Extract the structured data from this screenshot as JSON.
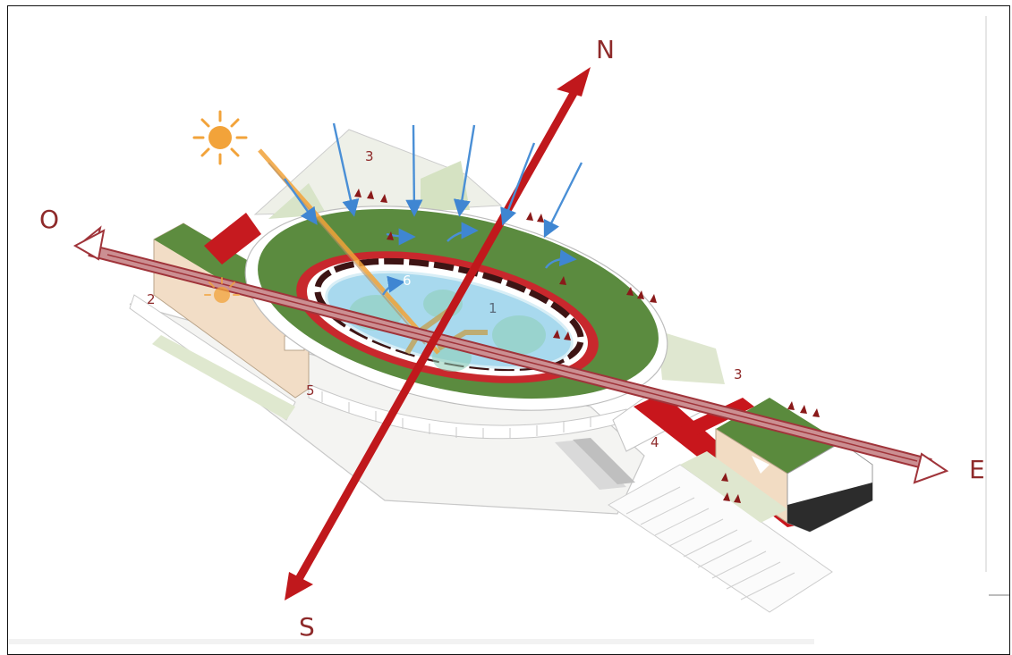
{
  "compass": {
    "north": "N",
    "south": "S",
    "east": "E",
    "west": "O"
  },
  "zones": {
    "z1": "1",
    "z2": "2",
    "z3a": "3",
    "z3b": "3",
    "z4": "4",
    "z5": "5",
    "z6": "6"
  },
  "colors": {
    "axis_red": "#c0181c",
    "wind_outline": "#a0343a",
    "rain_blue": "#4a8fd6",
    "sun_orange": "#f2a33a",
    "roof_green": "#5a8a3e",
    "water": "#a8d9ee",
    "ring_red": "#c8282d",
    "label": "#8e2a2a"
  },
  "icons": {
    "sun": "sun-icon"
  }
}
